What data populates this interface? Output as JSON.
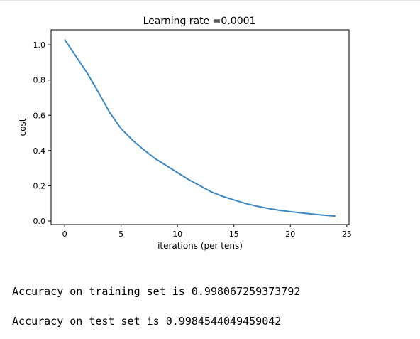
{
  "chart_data": {
    "type": "line",
    "title": "Learning rate =0.0001",
    "xlabel": "iterations (per tens)",
    "ylabel": "cost",
    "xlim": [
      -1.2,
      25.2
    ],
    "ylim": [
      -0.02,
      1.085
    ],
    "xticks": [
      0,
      5,
      10,
      15,
      20,
      25
    ],
    "yticks": [
      0.0,
      0.2,
      0.4,
      0.6,
      0.8,
      1.0
    ],
    "xtick_labels": [
      "0",
      "5",
      "10",
      "15",
      "20",
      "25"
    ],
    "ytick_labels": [
      "0.0",
      "0.2",
      "0.4",
      "0.6",
      "0.8",
      "1.0"
    ],
    "grid": false,
    "series": [
      {
        "color": "#3a87c4",
        "x": [
          0,
          1,
          2,
          3,
          4,
          5,
          6,
          7,
          8,
          9,
          10,
          11,
          12,
          13,
          14,
          15,
          16,
          17,
          18,
          19,
          20,
          21,
          22,
          23,
          24
        ],
        "y": [
          1.03,
          0.935,
          0.84,
          0.73,
          0.615,
          0.525,
          0.46,
          0.405,
          0.355,
          0.315,
          0.275,
          0.235,
          0.2,
          0.165,
          0.14,
          0.12,
          0.1,
          0.085,
          0.072,
          0.061,
          0.053,
          0.046,
          0.039,
          0.033,
          0.028
        ]
      }
    ]
  },
  "output": {
    "train_accuracy": "Accuracy on training set is 0.998067259373792",
    "test_accuracy": "Accuracy on test set is 0.9984544049459042"
  }
}
